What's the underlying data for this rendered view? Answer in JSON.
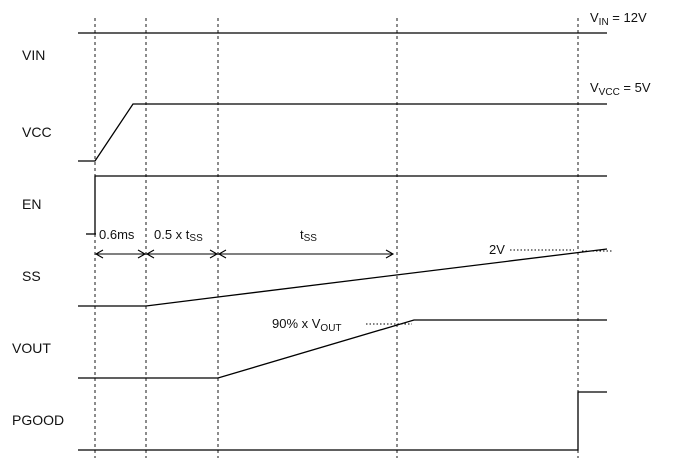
{
  "signals": [
    {
      "name": "VIN"
    },
    {
      "name": "VCC"
    },
    {
      "name": "EN"
    },
    {
      "name": "SS"
    },
    {
      "name": "VOUT"
    },
    {
      "name": "PGOOD"
    }
  ],
  "annotations": {
    "vin_main": "V",
    "vin_sub": "IN",
    "vin_rest": " = 12V",
    "vcc_main": "V",
    "vcc_sub": "VCC",
    "vcc_rest": " = 5V",
    "delay_0_6": "0.6ms",
    "half_tss_main": "0.5 x t",
    "half_tss_sub": "SS",
    "tss_main": "t",
    "tss_sub": "SS",
    "ss_2v": "2V",
    "vout_pct_main": "90% x V",
    "vout_pct_sub": "OUT"
  }
}
